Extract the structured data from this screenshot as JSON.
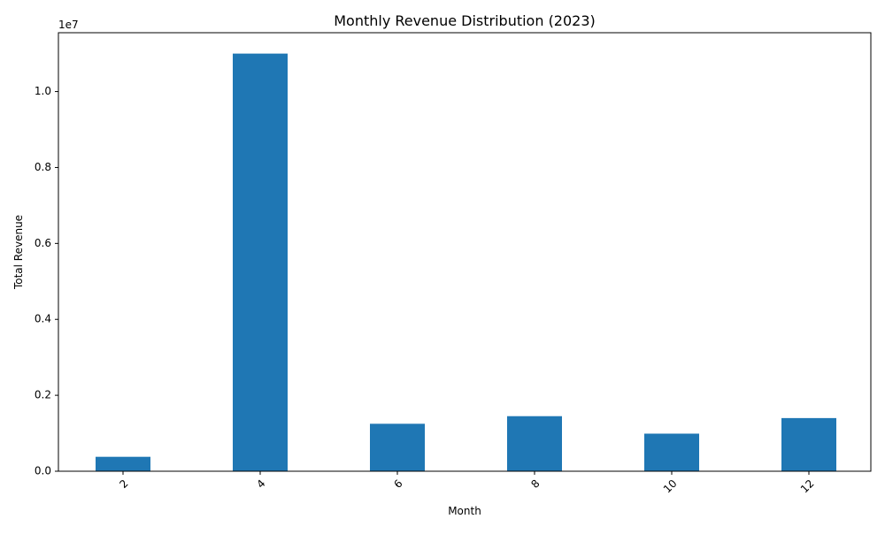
{
  "chart_data": {
    "type": "bar",
    "title": "Monthly Revenue Distribution (2023)",
    "xlabel": "Month",
    "ylabel": "Total Revenue",
    "categories": [
      "2",
      "4",
      "6",
      "8",
      "10",
      "12"
    ],
    "values": [
      380000,
      11000000,
      1250000,
      1450000,
      990000,
      1400000
    ],
    "ylim": [
      0,
      11550000
    ],
    "y_ticks": [
      0,
      2000000,
      4000000,
      6000000,
      8000000,
      10000000
    ],
    "y_tick_labels": [
      "0.0",
      "0.2",
      "0.4",
      "0.6",
      "0.8",
      "1.0"
    ],
    "y_offset_label": "1e7",
    "x_tick_rotation": 45,
    "bar_color": "#1f77b4",
    "grid": false,
    "legend": "none"
  }
}
